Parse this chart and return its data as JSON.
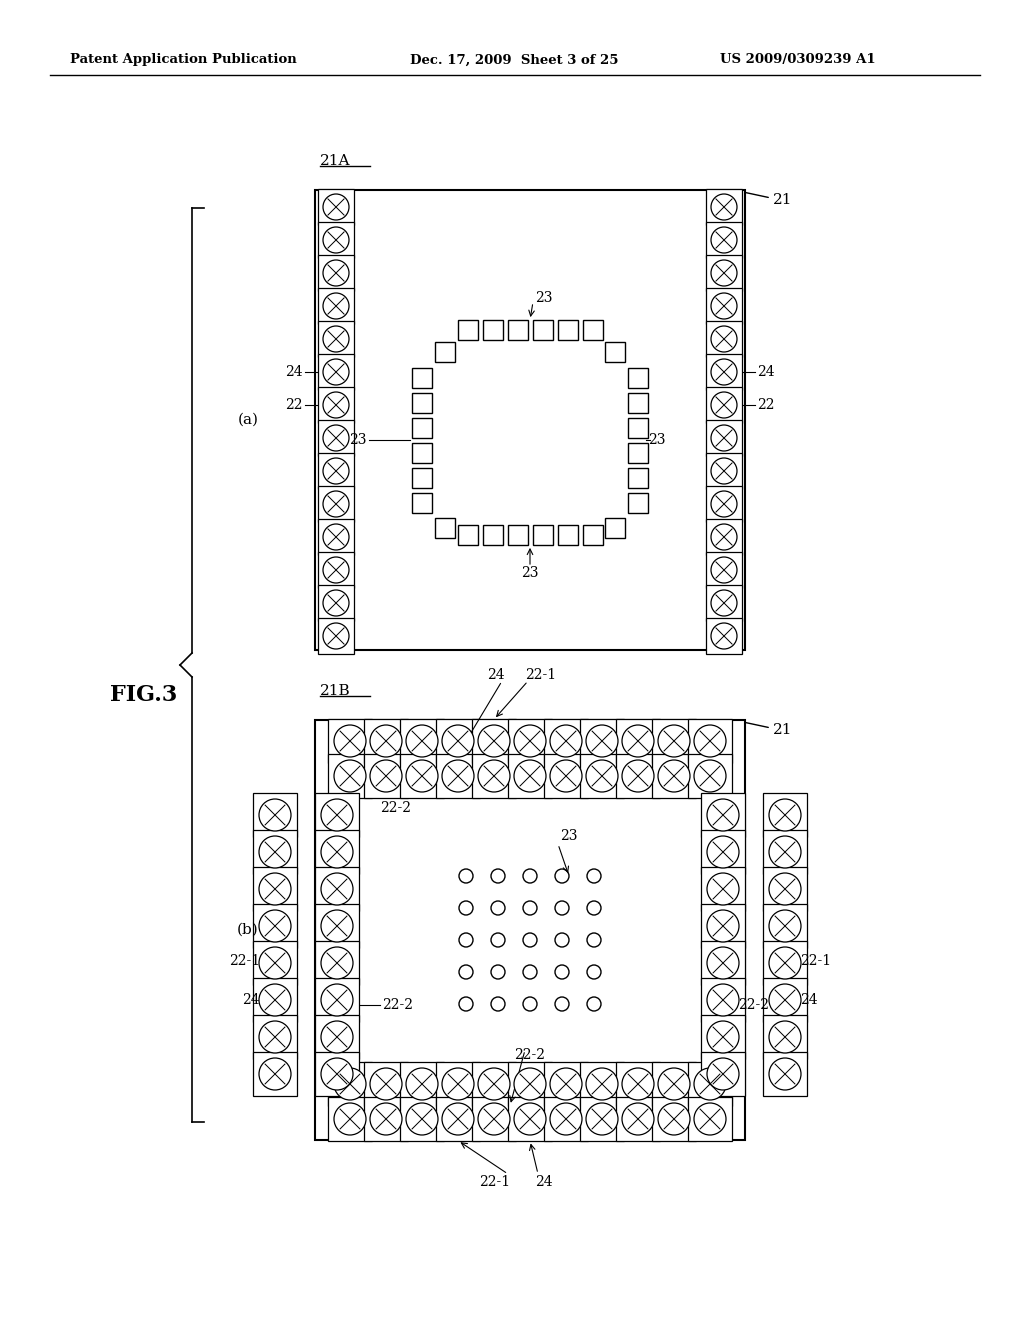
{
  "header_left": "Patent Application Publication",
  "header_mid": "Dec. 17, 2009  Sheet 3 of 25",
  "header_right": "US 2009/0309239 A1",
  "fig_label": "FIG.3",
  "bg_color": "#ffffff",
  "line_color": "#000000",
  "diagram_a_label": "21A",
  "diagram_b_label": "21B",
  "label_a": "(a)",
  "label_b": "(b)"
}
